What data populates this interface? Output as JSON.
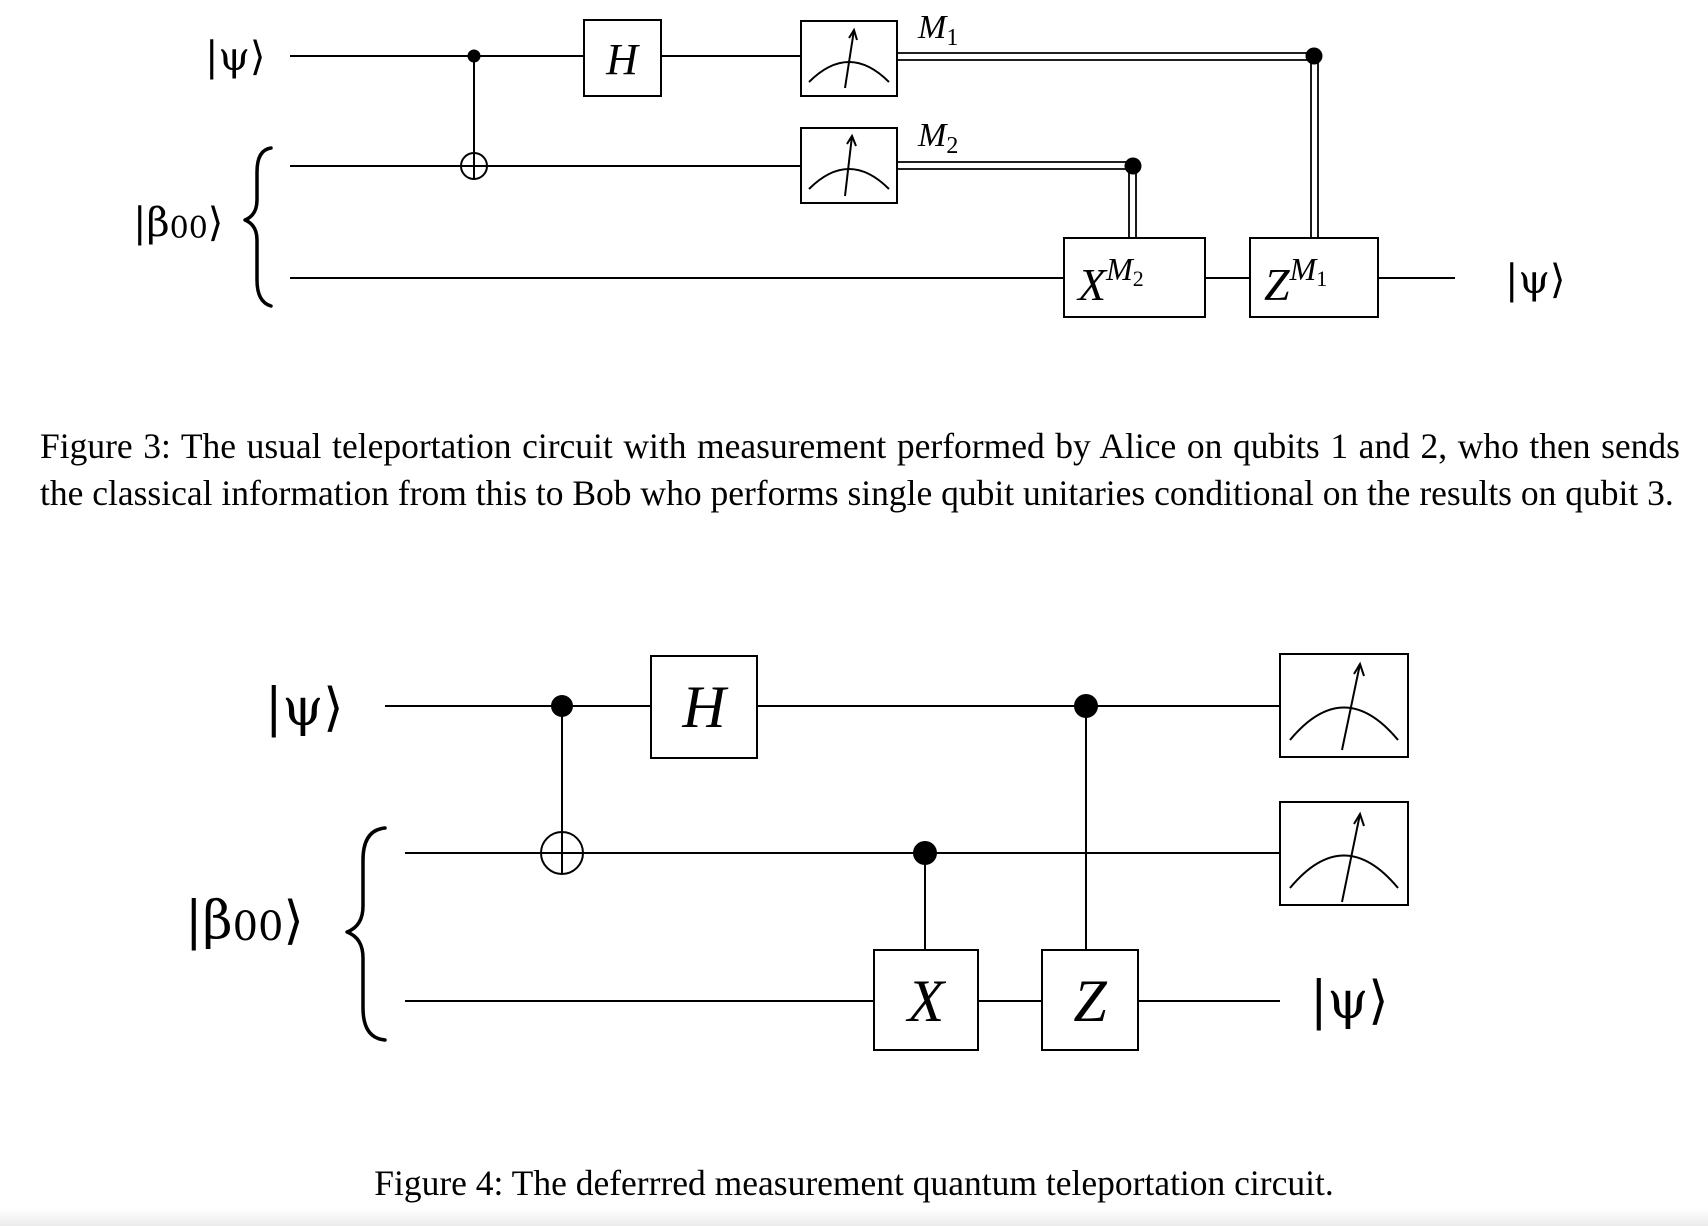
{
  "figure3": {
    "labels": {
      "input_state": "|ψ⟩",
      "bell_state": "|β",
      "bell_state_sub": "00",
      "bell_state_close": "⟩",
      "output_state": "|ψ⟩"
    },
    "gates": {
      "hadamard": "H",
      "x_correction": "X",
      "x_correction_sup": "M",
      "x_correction_sup_sub": "2",
      "z_correction": "Z",
      "z_correction_sup": "M",
      "z_correction_sup_sub": "1"
    },
    "measurements": {
      "m1": "M",
      "m1_sub": "1",
      "m2": "M",
      "m2_sub": "2"
    },
    "caption": "Figure 3: The usual teleportation circuit with measurement performed by Alice on qubits 1 and 2, who then sends the classical information from this to Bob who performs single qubit unitaries conditional on the results on qubit 3."
  },
  "figure4": {
    "labels": {
      "input_state": "|ψ⟩",
      "bell_state": "|β",
      "bell_state_sub": "00",
      "bell_state_close": "⟩",
      "output_state": "|ψ⟩"
    },
    "gates": {
      "hadamard": "H",
      "x_gate": "X",
      "z_gate": "Z"
    },
    "caption": "Figure 4: The deferrred measurement quantum teleportation circuit."
  }
}
